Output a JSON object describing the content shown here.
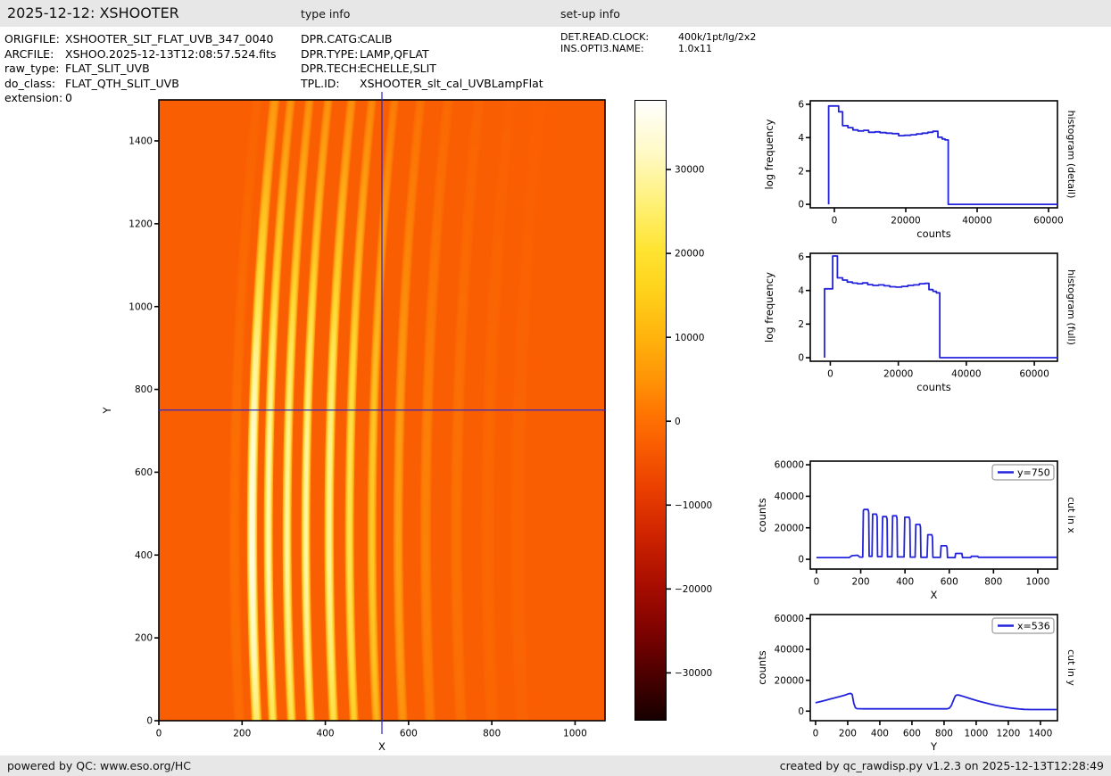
{
  "header": {
    "title": "2025-12-12: XSHOOTER",
    "type_info_label": "type info",
    "setup_info_label": "set-up info"
  },
  "metadata": {
    "file_info": [
      {
        "label": "ORIGFILE:",
        "value": "XSHOOTER_SLT_FLAT_UVB_347_0040"
      },
      {
        "label": "ARCFILE:",
        "value": "XSHOO.2025-12-13T12:08:57.524.fits"
      },
      {
        "label": "raw_type:",
        "value": "FLAT_SLIT_UVB"
      },
      {
        "label": "do_class:",
        "value": "FLAT_QTH_SLIT_UVB"
      },
      {
        "label": "extension:",
        "value": "0"
      }
    ],
    "type_info": [
      {
        "label": "DPR.CATG:",
        "value": "CALIB"
      },
      {
        "label": "DPR.TYPE:",
        "value": "LAMP,QFLAT"
      },
      {
        "label": "DPR.TECH:",
        "value": "ECHELLE,SLIT"
      },
      {
        "label": "TPL.ID:",
        "value": "XSHOOTER_slt_cal_UVBLampFlat"
      }
    ],
    "setup_info": [
      {
        "label": "DET.READ.CLOCK:",
        "value": "400k/1pt/lg/2x2"
      },
      {
        "label": "INS.OPTI3.NAME:",
        "value": "1.0x11"
      }
    ]
  },
  "footer": {
    "left": "powered by QC: www.eso.org/HC",
    "right": "created by qc_rawdisp.py v1.2.3 on 2025-12-13T12:28:49"
  },
  "colors": {
    "curve_blue": "#2323dd",
    "crosshair_blue": "#2a2acc",
    "bar_gray": "#e7e7e7",
    "image_background": "#fa5e02",
    "image_ramp": [
      [
        0,
        "#fa5e02"
      ],
      [
        0.18,
        "#fc7d06"
      ],
      [
        0.35,
        "#fd9d12"
      ],
      [
        0.5,
        "#ffbd1e"
      ],
      [
        0.65,
        "#ffd935"
      ],
      [
        0.78,
        "#ffe964"
      ],
      [
        0.9,
        "#fff7a8"
      ],
      [
        1,
        "#fffde2"
      ]
    ]
  },
  "chart_data": [
    {
      "id": "main-image",
      "type": "heatmap",
      "xlabel": "X",
      "ylabel": "Y",
      "xlim": [
        0,
        1072
      ],
      "ylim": [
        0,
        1499
      ],
      "xticks": [
        0,
        200,
        400,
        600,
        800,
        1000
      ],
      "yticks": [
        0,
        200,
        400,
        600,
        800,
        1000,
        1200,
        1400
      ],
      "colormap": "hot",
      "background_counts": 1100,
      "crosshair": {
        "x": 536,
        "y": 750
      },
      "orders": [
        {
          "x": 182,
          "w": 26,
          "i": 0.1
        },
        {
          "x": 224,
          "w": 24,
          "i": 1.0
        },
        {
          "x": 263,
          "w": 21,
          "i": 0.93
        },
        {
          "x": 308,
          "w": 21,
          "i": 0.89
        },
        {
          "x": 353,
          "w": 21,
          "i": 0.9
        },
        {
          "x": 409,
          "w": 22,
          "i": 0.87
        },
        {
          "x": 458,
          "w": 21,
          "i": 0.74
        },
        {
          "x": 512,
          "w": 21,
          "i": 0.56
        },
        {
          "x": 575,
          "w": 23,
          "i": 0.36
        },
        {
          "x": 641,
          "w": 26,
          "i": 0.2
        },
        {
          "x": 715,
          "w": 28,
          "i": 0.11
        },
        {
          "x": 790,
          "w": 32,
          "i": 0.055
        },
        {
          "x": 862,
          "w": 36,
          "i": 0.035
        }
      ],
      "slant": {
        "mid_t": 0.3,
        "bottom_dx": 11,
        "top_dx": 54
      },
      "vprofile": [
        [
          0,
          0.8
        ],
        [
          0.1,
          0.92
        ],
        [
          0.25,
          1.0
        ],
        [
          0.45,
          0.97
        ],
        [
          0.6,
          0.85
        ],
        [
          0.75,
          0.62
        ],
        [
          0.9,
          0.42
        ],
        [
          1,
          0.32
        ]
      ]
    },
    {
      "id": "colorbar",
      "type": "colorbar",
      "vmin": -35700,
      "vmax": 38300,
      "ticks": [
        30000,
        20000,
        10000,
        0,
        -10000,
        -20000,
        -30000
      ],
      "gradient": [
        [
          0,
          "#ffffff"
        ],
        [
          0.04,
          "#fffce3"
        ],
        [
          0.09,
          "#fff9c0"
        ],
        [
          0.17,
          "#fff073"
        ],
        [
          0.24,
          "#ffe433"
        ],
        [
          0.3,
          "#ffd41c"
        ],
        [
          0.38,
          "#ffb40d"
        ],
        [
          0.45,
          "#ff9406"
        ],
        [
          0.51,
          "#ff7202"
        ],
        [
          0.56,
          "#f85c01"
        ],
        [
          0.63,
          "#e93e00"
        ],
        [
          0.7,
          "#cf2400"
        ],
        [
          0.78,
          "#a90e00"
        ],
        [
          0.86,
          "#7c0200"
        ],
        [
          0.93,
          "#4a0000"
        ],
        [
          1,
          "#160000"
        ]
      ]
    },
    {
      "id": "hist-detail",
      "type": "line",
      "xlabel": "counts",
      "ylabel": "log frequency",
      "side_label": "histogram (detail)",
      "xlim": [
        -6750,
        62500
      ],
      "ylim": [
        -0.21,
        6.21
      ],
      "xticks": [
        0,
        20000,
        40000,
        60000
      ],
      "yticks": [
        0,
        2,
        4,
        6
      ],
      "points": [
        [
          -1600,
          0
        ],
        [
          -1600,
          5.9
        ],
        [
          1200,
          5.9
        ],
        [
          1200,
          5.55
        ],
        [
          2300,
          5.55
        ],
        [
          2300,
          4.72
        ],
        [
          3800,
          4.72
        ],
        [
          3800,
          4.6
        ],
        [
          5200,
          4.6
        ],
        [
          5200,
          4.46
        ],
        [
          6600,
          4.46
        ],
        [
          6600,
          4.4
        ],
        [
          8200,
          4.4
        ],
        [
          8200,
          4.44
        ],
        [
          9600,
          4.44
        ],
        [
          9600,
          4.32
        ],
        [
          11400,
          4.32
        ],
        [
          11400,
          4.35
        ],
        [
          12800,
          4.35
        ],
        [
          12800,
          4.3
        ],
        [
          14500,
          4.3
        ],
        [
          14500,
          4.27
        ],
        [
          16200,
          4.27
        ],
        [
          16200,
          4.24
        ],
        [
          18000,
          4.24
        ],
        [
          18000,
          4.12
        ],
        [
          19600,
          4.12
        ],
        [
          19600,
          4.14
        ],
        [
          21400,
          4.14
        ],
        [
          21400,
          4.17
        ],
        [
          23000,
          4.17
        ],
        [
          23000,
          4.22
        ],
        [
          24600,
          4.22
        ],
        [
          24600,
          4.27
        ],
        [
          26200,
          4.27
        ],
        [
          26200,
          4.32
        ],
        [
          27600,
          4.32
        ],
        [
          27600,
          4.38
        ],
        [
          29000,
          4.38
        ],
        [
          29000,
          4.02
        ],
        [
          30200,
          4.02
        ],
        [
          30200,
          3.92
        ],
        [
          31000,
          3.92
        ],
        [
          31000,
          3.86
        ],
        [
          31900,
          3.86
        ],
        [
          31900,
          0
        ],
        [
          62500,
          0
        ]
      ]
    },
    {
      "id": "hist-full",
      "type": "line",
      "xlabel": "counts",
      "ylabel": "log frequency",
      "side_label": "histogram (full)",
      "xlim": [
        -5890,
        66800
      ],
      "ylim": [
        -0.21,
        6.21
      ],
      "xticks": [
        0,
        20000,
        40000,
        60000
      ],
      "yticks": [
        0,
        2,
        4,
        6
      ],
      "points": [
        [
          -1700,
          0
        ],
        [
          -1700,
          4.1
        ],
        [
          700,
          4.1
        ],
        [
          700,
          6.05
        ],
        [
          2100,
          6.05
        ],
        [
          2100,
          4.75
        ],
        [
          3600,
          4.75
        ],
        [
          3600,
          4.62
        ],
        [
          5000,
          4.62
        ],
        [
          5000,
          4.5
        ],
        [
          6500,
          4.5
        ],
        [
          6500,
          4.44
        ],
        [
          8000,
          4.44
        ],
        [
          8000,
          4.4
        ],
        [
          9500,
          4.4
        ],
        [
          9500,
          4.45
        ],
        [
          11000,
          4.45
        ],
        [
          11000,
          4.35
        ],
        [
          12500,
          4.35
        ],
        [
          12500,
          4.3
        ],
        [
          14200,
          4.3
        ],
        [
          14200,
          4.33
        ],
        [
          15800,
          4.33
        ],
        [
          15800,
          4.28
        ],
        [
          17500,
          4.28
        ],
        [
          17500,
          4.22
        ],
        [
          19200,
          4.22
        ],
        [
          19200,
          4.2
        ],
        [
          21000,
          4.2
        ],
        [
          21000,
          4.24
        ],
        [
          22800,
          4.24
        ],
        [
          22800,
          4.3
        ],
        [
          24500,
          4.3
        ],
        [
          24500,
          4.33
        ],
        [
          26200,
          4.33
        ],
        [
          26200,
          4.4
        ],
        [
          27800,
          4.4
        ],
        [
          27800,
          4.42
        ],
        [
          29000,
          4.42
        ],
        [
          29000,
          4.05
        ],
        [
          30200,
          4.05
        ],
        [
          30200,
          3.95
        ],
        [
          31200,
          3.95
        ],
        [
          31200,
          3.86
        ],
        [
          32200,
          3.86
        ],
        [
          32200,
          0
        ],
        [
          66800,
          0
        ]
      ]
    },
    {
      "id": "cut-x",
      "type": "line",
      "xlabel": "X",
      "ylabel": "counts",
      "side_label": "cut in x",
      "legend": "y=750",
      "xlim": [
        -28,
        1089
      ],
      "ylim": [
        -6200,
        62300
      ],
      "xticks": [
        0,
        200,
        400,
        600,
        800,
        1000
      ],
      "yticks": [
        0,
        20000,
        40000,
        60000
      ],
      "points": [
        [
          0,
          1100
        ],
        [
          148,
          1100
        ],
        [
          160,
          2300
        ],
        [
          186,
          2600
        ],
        [
          196,
          1400
        ],
        [
          209,
          1400
        ],
        [
          212,
          31000
        ],
        [
          215,
          31600
        ],
        [
          233,
          31600
        ],
        [
          236,
          30000
        ],
        [
          238,
          1900
        ],
        [
          251,
          1900
        ],
        [
          254,
          28700
        ],
        [
          271,
          28700
        ],
        [
          274,
          27000
        ],
        [
          276,
          1700
        ],
        [
          296,
          1700
        ],
        [
          299,
          27100
        ],
        [
          316,
          27100
        ],
        [
          319,
          25500
        ],
        [
          321,
          1600
        ],
        [
          341,
          1600
        ],
        [
          344,
          27600
        ],
        [
          361,
          27600
        ],
        [
          364,
          26000
        ],
        [
          366,
          1500
        ],
        [
          396,
          1500
        ],
        [
          399,
          26700
        ],
        [
          419,
          26700
        ],
        [
          422,
          25000
        ],
        [
          424,
          1400
        ],
        [
          446,
          1400
        ],
        [
          449,
          22100
        ],
        [
          467,
          22100
        ],
        [
          470,
          20500
        ],
        [
          472,
          1300
        ],
        [
          500,
          1300
        ],
        [
          503,
          15600
        ],
        [
          521,
          15600
        ],
        [
          524,
          14000
        ],
        [
          526,
          1200
        ],
        [
          560,
          1200
        ],
        [
          563,
          8600
        ],
        [
          587,
          8600
        ],
        [
          590,
          7500
        ],
        [
          592,
          1100
        ],
        [
          626,
          1100
        ],
        [
          629,
          3700
        ],
        [
          657,
          3700
        ],
        [
          660,
          1100
        ],
        [
          697,
          1100
        ],
        [
          700,
          1900
        ],
        [
          729,
          1900
        ],
        [
          732,
          1250
        ],
        [
          1085,
          1250
        ]
      ]
    },
    {
      "id": "cut-y",
      "type": "line",
      "xlabel": "Y",
      "ylabel": "counts",
      "side_label": "cut in y",
      "legend": "x=536",
      "xlim": [
        -33,
        1506
      ],
      "ylim": [
        -6200,
        62600
      ],
      "xticks": [
        0,
        200,
        400,
        600,
        800,
        1000,
        1200,
        1400
      ],
      "yticks": [
        0,
        20000,
        40000,
        60000
      ],
      "points": [
        [
          0,
          5400
        ],
        [
          30,
          6200
        ],
        [
          60,
          7000
        ],
        [
          90,
          7800
        ],
        [
          120,
          8600
        ],
        [
          150,
          9400
        ],
        [
          180,
          10300
        ],
        [
          205,
          11200
        ],
        [
          218,
          11500
        ],
        [
          228,
          10800
        ],
        [
          238,
          5000
        ],
        [
          248,
          2200
        ],
        [
          258,
          1600
        ],
        [
          300,
          1500
        ],
        [
          600,
          1500
        ],
        [
          820,
          1500
        ],
        [
          832,
          1900
        ],
        [
          845,
          3500
        ],
        [
          858,
          7000
        ],
        [
          870,
          9800
        ],
        [
          880,
          10500
        ],
        [
          892,
          10400
        ],
        [
          910,
          9900
        ],
        [
          940,
          8900
        ],
        [
          970,
          7900
        ],
        [
          1000,
          7000
        ],
        [
          1030,
          6100
        ],
        [
          1060,
          5300
        ],
        [
          1090,
          4500
        ],
        [
          1120,
          3800
        ],
        [
          1150,
          3200
        ],
        [
          1180,
          2600
        ],
        [
          1210,
          2100
        ],
        [
          1240,
          1700
        ],
        [
          1270,
          1400
        ],
        [
          1300,
          1150
        ],
        [
          1340,
          1050
        ],
        [
          1400,
          1050
        ],
        [
          1500,
          1050
        ]
      ]
    }
  ]
}
